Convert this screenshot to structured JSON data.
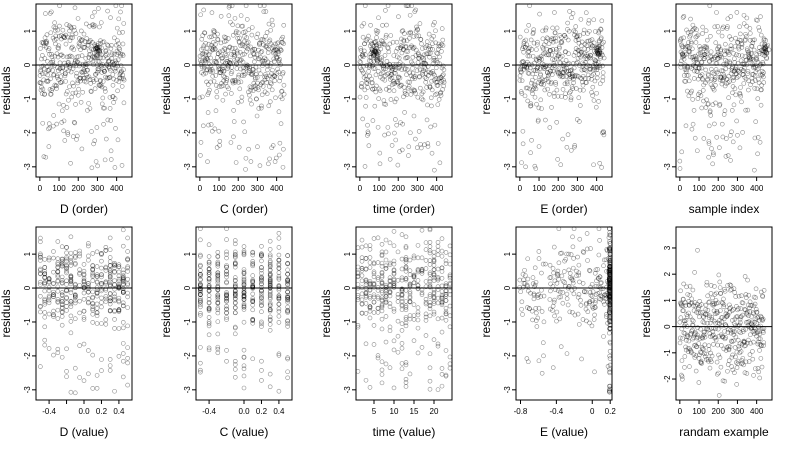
{
  "figure": {
    "background": "#ffffff",
    "point_color": "#000000",
    "point_shape": "open-circle"
  },
  "chart_data": [
    {
      "id": "p1",
      "type": "scatter",
      "xlabel": "D (order)",
      "ylabel": "residuals",
      "xlim": [
        -20,
        480
      ],
      "ylim": [
        -3.3,
        1.8
      ],
      "xticks": [
        0,
        100,
        200,
        300,
        400
      ],
      "yticks": [
        -3,
        -2,
        -1,
        0,
        1
      ],
      "hline": 0,
      "n_points": 440,
      "x_distribution": "index",
      "cluster_points": [
        [
          300,
          0.45
        ]
      ],
      "seed": 11
    },
    {
      "id": "p2",
      "type": "scatter",
      "xlabel": "C (order)",
      "ylabel": "residuals",
      "xlim": [
        -20,
        480
      ],
      "ylim": [
        -3.3,
        1.8
      ],
      "xticks": [
        0,
        100,
        200,
        300,
        400
      ],
      "yticks": [
        -3,
        -2,
        -1,
        0,
        1
      ],
      "hline": 0,
      "n_points": 440,
      "x_distribution": "index",
      "cluster_points": [],
      "seed": 23
    },
    {
      "id": "p3",
      "type": "scatter",
      "xlabel": "time (order)",
      "ylabel": "residuals",
      "xlim": [
        -20,
        480
      ],
      "ylim": [
        -3.3,
        1.8
      ],
      "xticks": [
        0,
        100,
        200,
        300,
        400
      ],
      "yticks": [
        -3,
        -2,
        -1,
        0,
        1
      ],
      "hline": 0,
      "n_points": 440,
      "x_distribution": "index",
      "cluster_points": [
        [
          80,
          0.4
        ]
      ],
      "seed": 37
    },
    {
      "id": "p4",
      "type": "scatter",
      "xlabel": "E (order)",
      "ylabel": "residuals",
      "xlim": [
        -20,
        480
      ],
      "ylim": [
        -3.3,
        1.8
      ],
      "xticks": [
        0,
        100,
        200,
        300,
        400
      ],
      "yticks": [
        -3,
        -2,
        -1,
        0,
        1
      ],
      "hline": 0,
      "n_points": 440,
      "x_distribution": "index",
      "cluster_points": [
        [
          410,
          0.45
        ]
      ],
      "seed": 41
    },
    {
      "id": "p5",
      "type": "scatter",
      "xlabel": "sample index",
      "ylabel": "residuals",
      "xlim": [
        -20,
        480
      ],
      "ylim": [
        -3.3,
        1.8
      ],
      "xticks": [
        0,
        100,
        200,
        300,
        400
      ],
      "yticks": [
        -3,
        -2,
        -1,
        0,
        1
      ],
      "hline": 0,
      "n_points": 440,
      "x_distribution": "index",
      "cluster_points": [
        [
          440,
          0.45
        ]
      ],
      "seed": 53
    },
    {
      "id": "p6",
      "type": "scatter",
      "xlabel": "D (value)",
      "ylabel": "residuals",
      "xlim": [
        -0.55,
        0.55
      ],
      "ylim": [
        -3.3,
        1.8
      ],
      "xticks": [
        -0.4,
        -0.2,
        0.0,
        0.2,
        0.4
      ],
      "xtick_labels": [
        "-0.4",
        "0.0",
        "0.2",
        "0.4"
      ],
      "xtick_label_at": [
        -0.4,
        0.0,
        0.2,
        0.4
      ],
      "yticks": [
        -3,
        -2,
        -1,
        0,
        1
      ],
      "hline": 0,
      "n_points": 440,
      "x_distribution": "discrete",
      "x_levels": [
        -0.5,
        -0.45,
        -0.4,
        -0.35,
        -0.3,
        -0.25,
        -0.2,
        -0.15,
        -0.1,
        -0.05,
        0.0,
        0.05,
        0.1,
        0.15,
        0.2,
        0.25,
        0.3,
        0.35,
        0.4,
        0.45,
        0.5
      ],
      "seed": 61
    },
    {
      "id": "p7",
      "type": "scatter",
      "xlabel": "C (value)",
      "ylabel": "residuals",
      "xlim": [
        -0.55,
        0.55
      ],
      "ylim": [
        -3.3,
        1.8
      ],
      "xticks": [
        -0.4,
        0.0,
        0.2,
        0.4
      ],
      "xtick_labels": [
        "-0.4",
        "0.0",
        "0.2",
        "0.4"
      ],
      "xtick_label_at": [
        -0.4,
        0.0,
        0.2,
        0.4
      ],
      "yticks": [
        -3,
        -2,
        -1,
        0,
        1
      ],
      "hline": 0,
      "n_points": 440,
      "x_distribution": "discrete",
      "x_levels": [
        -0.5,
        -0.4,
        -0.3,
        -0.2,
        -0.1,
        0.0,
        0.1,
        0.2,
        0.3,
        0.4,
        0.5
      ],
      "seed": 73
    },
    {
      "id": "p8",
      "type": "scatter",
      "xlabel": "time (value)",
      "ylabel": "residuals",
      "xlim": [
        0.5,
        24.5
      ],
      "ylim": [
        -3.3,
        1.8
      ],
      "xticks": [
        5,
        10,
        15,
        20
      ],
      "yticks": [
        -3,
        -2,
        -1,
        0,
        1
      ],
      "hline": 0,
      "n_points": 440,
      "x_distribution": "discrete",
      "x_levels": [
        1,
        2,
        3,
        4,
        5,
        6,
        7,
        8,
        9,
        10,
        11,
        12,
        13,
        14,
        15,
        16,
        17,
        18,
        19,
        20,
        21,
        22,
        23,
        24
      ],
      "seed": 89
    },
    {
      "id": "p9",
      "type": "scatter",
      "xlabel": "E (value)",
      "ylabel": "residuals",
      "xlim": [
        -0.85,
        0.22
      ],
      "ylim": [
        -3.3,
        1.8
      ],
      "xticks": [
        -0.8,
        -0.4,
        0.0,
        0.2
      ],
      "yticks": [
        -3,
        -2,
        -1,
        0,
        1
      ],
      "hline": 0,
      "n_points": 440,
      "x_distribution": "skewed_right",
      "x_mass_at": 0.2,
      "seed": 97
    },
    {
      "id": "p10",
      "type": "scatter",
      "xlabel": "randam example",
      "ylabel": "residuals",
      "xlim": [
        -20,
        480
      ],
      "ylim": [
        -2.8,
        3.8
      ],
      "xticks": [
        0,
        100,
        200,
        300,
        400
      ],
      "yticks": [
        -2,
        -1,
        0,
        1,
        2,
        3
      ],
      "hline": 0,
      "n_points": 440,
      "x_distribution": "index",
      "cluster_points": [],
      "seed": 101,
      "random_normal": true
    }
  ]
}
